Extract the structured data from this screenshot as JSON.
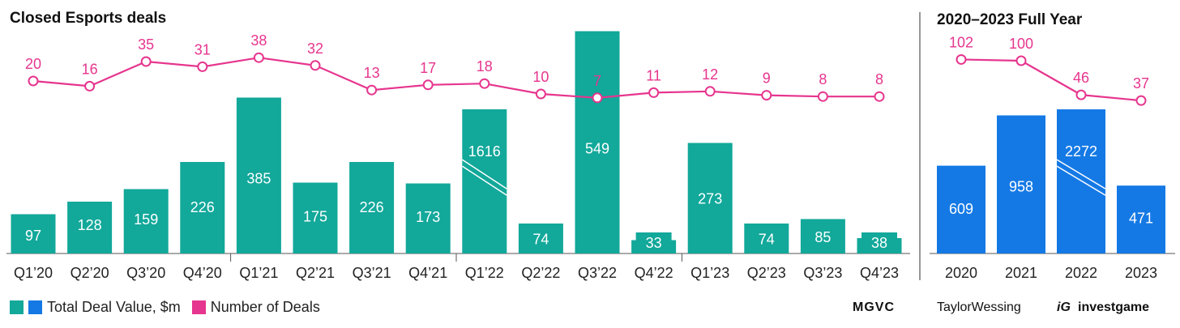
{
  "titles": {
    "quarterly": "Closed Esports deals",
    "yearly": "2020–2023 Full Year"
  },
  "legend": {
    "value_label": "Total Deal Value, $m",
    "count_label": "Number of Deals"
  },
  "logos": {
    "mgvc": "MGVC",
    "tw": "TaylorWessing",
    "ig_mark": "iG",
    "ig": "investgame"
  },
  "colors": {
    "teal": "#12A89A",
    "blue": "#1479E5",
    "pink": "#E6358E"
  },
  "chart_data": [
    {
      "type": "bar",
      "title": "Closed Esports deals",
      "categories": [
        "Q1’20",
        "Q2’20",
        "Q3’20",
        "Q4’20",
        "Q1’21",
        "Q2’21",
        "Q3’21",
        "Q4’21",
        "Q1’22",
        "Q2’22",
        "Q3’22",
        "Q4’22",
        "Q1’23",
        "Q2’23",
        "Q3’23",
        "Q4’23"
      ],
      "series": [
        {
          "name": "Total Deal Value, $m",
          "type": "bar",
          "values": [
            97,
            128,
            159,
            226,
            385,
            175,
            226,
            173,
            1616,
            74,
            549,
            33,
            273,
            74,
            85,
            38
          ]
        },
        {
          "name": "Number of Deals",
          "type": "line",
          "values": [
            20,
            16,
            35,
            31,
            38,
            32,
            13,
            17,
            18,
            10,
            7,
            11,
            12,
            9,
            8,
            8
          ]
        }
      ],
      "axis_break": "Q1’22"
    },
    {
      "type": "bar",
      "title": "2020–2023 Full Year",
      "categories": [
        "2020",
        "2021",
        "2022",
        "2023"
      ],
      "series": [
        {
          "name": "Total Deal Value, $m",
          "type": "bar",
          "values": [
            609,
            958,
            2272,
            471
          ]
        },
        {
          "name": "Number of Deals",
          "type": "line",
          "values": [
            102,
            100,
            46,
            37
          ]
        }
      ],
      "axis_break": "2022"
    }
  ]
}
